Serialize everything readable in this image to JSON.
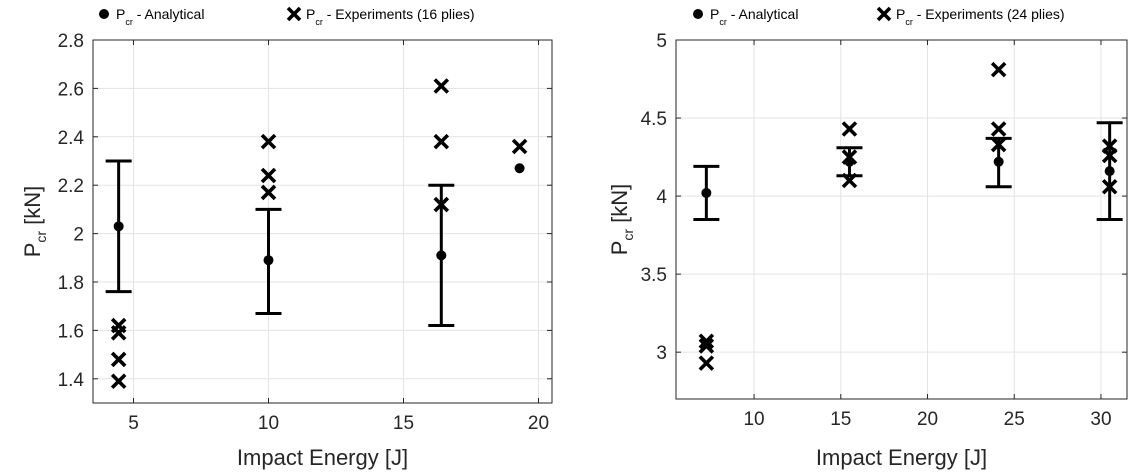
{
  "chart_data": [
    {
      "type": "scatter",
      "xlabel": "Impact Energy [J]",
      "ylabel": {
        "main": "P",
        "sub": "cr",
        "unit": " [kN]"
      },
      "xlim": [
        3.5,
        20.5
      ],
      "ylim": [
        1.3,
        2.8
      ],
      "xticks": [
        5,
        10,
        15,
        20
      ],
      "yticks": [
        1.4,
        1.6,
        1.8,
        2.0,
        2.2,
        2.4,
        2.6,
        2.8
      ],
      "ytick_labels": [
        "1.4",
        "1.6",
        "1.8",
        "2",
        "2.2",
        "2.4",
        "2.6",
        "2.8"
      ],
      "grid": true,
      "legend_position": "top",
      "series": [
        {
          "name": {
            "main": "P",
            "sub": "cr",
            "suffix": " - Analytical"
          },
          "marker": "dot",
          "points": [
            {
              "x": 4.45,
              "y": 2.03,
              "err_low": 1.76,
              "err_high": 2.3
            },
            {
              "x": 10.0,
              "y": 1.89,
              "err_low": 1.67,
              "err_high": 2.1
            },
            {
              "x": 16.4,
              "y": 1.91,
              "err_low": 1.62,
              "err_high": 2.2
            },
            {
              "x": 19.3,
              "y": 2.27
            }
          ]
        },
        {
          "name": {
            "main": "P",
            "sub": "cr",
            "suffix": " - Experiments (16 plies)"
          },
          "marker": "cross",
          "points": [
            {
              "x": 4.45,
              "y": 1.62
            },
            {
              "x": 4.45,
              "y": 1.59
            },
            {
              "x": 4.45,
              "y": 1.48
            },
            {
              "x": 4.45,
              "y": 1.39
            },
            {
              "x": 10.0,
              "y": 2.38
            },
            {
              "x": 10.0,
              "y": 2.24
            },
            {
              "x": 10.0,
              "y": 2.17
            },
            {
              "x": 16.4,
              "y": 2.61
            },
            {
              "x": 16.4,
              "y": 2.38
            },
            {
              "x": 16.4,
              "y": 2.12
            },
            {
              "x": 19.3,
              "y": 2.36
            }
          ]
        }
      ]
    },
    {
      "type": "scatter",
      "xlabel": "Impact Energy [J]",
      "ylabel": {
        "main": "P",
        "sub": "cr",
        "unit": " [kN]"
      },
      "xlim": [
        5.5,
        31.5
      ],
      "ylim": [
        2.7,
        5.0
      ],
      "xticks": [
        10,
        15,
        20,
        25,
        30
      ],
      "yticks": [
        3.0,
        3.5,
        4.0,
        4.5,
        5.0
      ],
      "ytick_labels": [
        "3",
        "3.5",
        "4",
        "4.5",
        "5"
      ],
      "grid": true,
      "legend_position": "top",
      "series": [
        {
          "name": {
            "main": "P",
            "sub": "cr",
            "suffix": " - Analytical"
          },
          "marker": "dot",
          "points": [
            {
              "x": 7.25,
              "y": 4.02,
              "err_low": 3.85,
              "err_high": 4.19
            },
            {
              "x": 15.5,
              "y": 4.22,
              "err_low": 4.13,
              "err_high": 4.31
            },
            {
              "x": 24.1,
              "y": 4.22,
              "err_low": 4.06,
              "err_high": 4.37
            },
            {
              "x": 30.5,
              "y": 4.16,
              "err_low": 3.85,
              "err_high": 4.47
            }
          ]
        },
        {
          "name": {
            "main": "P",
            "sub": "cr",
            "suffix": " - Experiments (24 plies)"
          },
          "marker": "cross",
          "points": [
            {
              "x": 7.25,
              "y": 3.07
            },
            {
              "x": 7.25,
              "y": 3.04
            },
            {
              "x": 7.25,
              "y": 2.93
            },
            {
              "x": 15.5,
              "y": 4.43
            },
            {
              "x": 15.5,
              "y": 4.25
            },
            {
              "x": 15.5,
              "y": 4.1
            },
            {
              "x": 24.1,
              "y": 4.81
            },
            {
              "x": 24.1,
              "y": 4.43
            },
            {
              "x": 24.1,
              "y": 4.33
            },
            {
              "x": 30.5,
              "y": 4.32
            },
            {
              "x": 30.5,
              "y": 4.26
            },
            {
              "x": 30.5,
              "y": 4.06
            }
          ]
        }
      ]
    }
  ]
}
